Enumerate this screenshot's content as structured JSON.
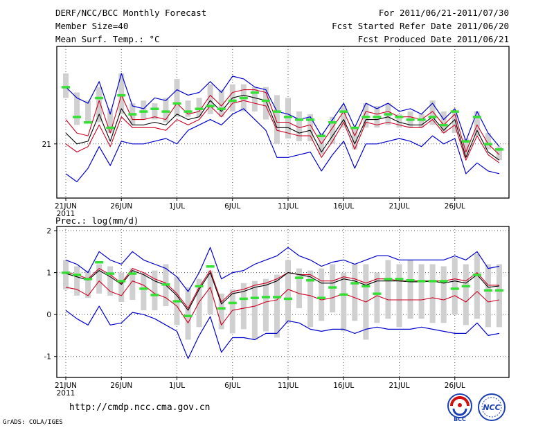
{
  "header": {
    "title": "DERF/NCC/BCC Monthly Forecast",
    "member_size": "Member Size=40",
    "variable": "Mean Surf. Temp.: °C",
    "period": "For 2011/06/21-2011/07/30",
    "fcst_started": "Fcst Started Refer Date 2011/06/20",
    "fcst_produced": "Fcst Produced Date 2011/06/21"
  },
  "precip_label": "Prec.: log(mm/d)",
  "footer": {
    "url": "http://cmdp.ncc.cma.gov.cn",
    "grads": "GrADS: COLA/IGES",
    "logo_bcc": "BCC",
    "logo_ncc": "NCC"
  },
  "colors": {
    "envelope": "#0000cc",
    "spread": "#cc0022",
    "mean": "#000000",
    "median": "#33e033",
    "box": "#d0d0d0"
  },
  "chart_data": [
    {
      "type": "line",
      "title": "Mean Surf. Temp.: °C",
      "ylabel": "°C",
      "ylim": [
        20.0,
        22.8
      ],
      "yticks": [
        21
      ],
      "xticks": [
        {
          "day": 0,
          "label": "21JUN",
          "sub": "2011"
        },
        {
          "day": 5,
          "label": "26JUN"
        },
        {
          "day": 10,
          "label": "1JUL"
        },
        {
          "day": 15,
          "label": "6JUL"
        },
        {
          "day": 20,
          "label": "11JUL"
        },
        {
          "day": 25,
          "label": "16JUL"
        },
        {
          "day": 30,
          "label": "21JUL"
        },
        {
          "day": 35,
          "label": "26JUL"
        }
      ],
      "x": [
        0,
        1,
        2,
        3,
        4,
        5,
        6,
        7,
        8,
        9,
        10,
        11,
        12,
        13,
        14,
        15,
        16,
        17,
        18,
        19,
        20,
        21,
        22,
        23,
        24,
        25,
        26,
        27,
        28,
        29,
        30,
        31,
        32,
        33,
        34,
        35,
        36,
        37,
        38,
        39
      ],
      "series": [
        {
          "name": "max",
          "values": [
            22.05,
            21.85,
            21.75,
            22.15,
            21.55,
            22.3,
            21.7,
            21.65,
            21.85,
            21.8,
            22.0,
            21.9,
            21.95,
            22.15,
            21.95,
            22.25,
            22.2,
            22.05,
            22.0,
            21.6,
            21.55,
            21.45,
            21.5,
            21.15,
            21.45,
            21.75,
            21.3,
            21.75,
            21.65,
            21.75,
            21.6,
            21.65,
            21.55,
            21.75,
            21.45,
            21.65,
            21.05,
            21.6,
            21.2,
            20.95
          ]
        },
        {
          "name": "upper",
          "values": [
            21.45,
            21.2,
            21.15,
            21.8,
            21.2,
            21.9,
            21.45,
            21.45,
            21.5,
            21.45,
            21.75,
            21.55,
            21.6,
            21.9,
            21.7,
            21.95,
            22.0,
            22.0,
            21.95,
            21.4,
            21.4,
            21.3,
            21.35,
            21.0,
            21.3,
            21.6,
            21.15,
            21.6,
            21.55,
            21.6,
            21.5,
            21.5,
            21.45,
            21.6,
            21.35,
            21.55,
            20.85,
            21.35,
            21.0,
            20.8
          ]
        },
        {
          "name": "mean",
          "values": [
            21.2,
            21.0,
            21.05,
            21.55,
            21.05,
            21.65,
            21.35,
            21.35,
            21.4,
            21.35,
            21.55,
            21.45,
            21.5,
            21.8,
            21.6,
            21.85,
            21.9,
            21.85,
            21.8,
            21.3,
            21.3,
            21.2,
            21.25,
            20.85,
            21.15,
            21.45,
            21.0,
            21.45,
            21.45,
            21.5,
            21.4,
            21.35,
            21.35,
            21.5,
            21.25,
            21.45,
            20.75,
            21.25,
            20.85,
            20.7
          ]
        },
        {
          "name": "lower",
          "values": [
            21.0,
            20.85,
            20.95,
            21.35,
            20.95,
            21.5,
            21.3,
            21.3,
            21.3,
            21.25,
            21.45,
            21.35,
            21.45,
            21.7,
            21.5,
            21.75,
            21.8,
            21.75,
            21.7,
            21.25,
            21.2,
            21.15,
            21.15,
            20.75,
            21.05,
            21.4,
            20.9,
            21.4,
            21.35,
            21.4,
            21.35,
            21.3,
            21.3,
            21.45,
            21.2,
            21.35,
            20.7,
            21.15,
            20.8,
            20.65
          ]
        },
        {
          "name": "min",
          "values": [
            20.45,
            20.3,
            20.55,
            20.95,
            20.6,
            21.05,
            21.0,
            21.0,
            21.05,
            21.1,
            21.0,
            21.25,
            21.35,
            21.45,
            21.35,
            21.55,
            21.65,
            21.45,
            21.25,
            20.75,
            20.75,
            20.8,
            20.85,
            20.5,
            20.8,
            21.05,
            20.55,
            21.0,
            21.0,
            21.05,
            21.1,
            21.05,
            20.95,
            21.15,
            21.0,
            21.1,
            20.45,
            20.65,
            20.5,
            20.45
          ]
        },
        {
          "name": "median",
          "values": [
            22.05,
            21.5,
            21.4,
            21.85,
            21.3,
            21.9,
            21.55,
            21.6,
            21.65,
            21.6,
            21.75,
            21.6,
            21.65,
            21.7,
            21.65,
            21.8,
            21.85,
            21.95,
            21.8,
            21.6,
            21.5,
            21.45,
            21.45,
            21.15,
            21.4,
            21.6,
            21.3,
            21.5,
            21.5,
            21.55,
            21.5,
            21.45,
            21.45,
            21.5,
            21.35,
            21.6,
            21.05,
            21.5,
            21.0,
            20.9
          ]
        },
        {
          "name": "box_high",
          "values": [
            22.3,
            21.95,
            21.8,
            22.05,
            21.65,
            22.3,
            21.75,
            21.8,
            21.75,
            21.85,
            22.2,
            21.8,
            21.85,
            22.1,
            22.0,
            22.1,
            22.1,
            22.05,
            22.05,
            21.9,
            21.85,
            21.6,
            21.55,
            21.2,
            21.5,
            21.7,
            21.3,
            21.75,
            21.7,
            21.75,
            21.55,
            21.6,
            21.55,
            21.8,
            21.6,
            21.6,
            21.1,
            21.6,
            21.2,
            20.95
          ]
        },
        {
          "name": "box_low",
          "values": [
            21.85,
            21.35,
            21.4,
            21.4,
            21.2,
            21.55,
            21.35,
            21.45,
            21.45,
            21.4,
            21.5,
            21.5,
            21.5,
            21.55,
            21.5,
            21.6,
            21.6,
            21.6,
            21.45,
            21.0,
            21.1,
            21.05,
            21.05,
            20.8,
            21.0,
            21.3,
            20.9,
            21.3,
            21.3,
            21.35,
            21.3,
            21.3,
            21.3,
            21.35,
            21.2,
            21.2,
            20.75,
            21.15,
            20.9,
            20.7
          ]
        }
      ]
    },
    {
      "type": "line",
      "title": "Prec.: log(mm/d)",
      "ylabel": "log(mm/d)",
      "ylim": [
        -1.5,
        2.1
      ],
      "yticks": [
        -1,
        0,
        1,
        2
      ],
      "xticks": [
        {
          "day": 0,
          "label": "21JUN",
          "sub": "2011"
        },
        {
          "day": 5,
          "label": "26JUN"
        },
        {
          "day": 10,
          "label": "1JUL"
        },
        {
          "day": 15,
          "label": "6JUL"
        },
        {
          "day": 20,
          "label": "11JUL"
        },
        {
          "day": 25,
          "label": "16JUL"
        },
        {
          "day": 30,
          "label": "21JUL"
        },
        {
          "day": 35,
          "label": "26JUL"
        }
      ],
      "x": [
        0,
        1,
        2,
        3,
        4,
        5,
        6,
        7,
        8,
        9,
        10,
        11,
        12,
        13,
        14,
        15,
        16,
        17,
        18,
        19,
        20,
        21,
        22,
        23,
        24,
        25,
        26,
        27,
        28,
        29,
        30,
        31,
        32,
        33,
        34,
        35,
        36,
        37,
        38,
        39
      ],
      "series": [
        {
          "name": "max",
          "values": [
            1.3,
            1.2,
            1.0,
            1.5,
            1.3,
            1.2,
            1.5,
            1.3,
            1.2,
            1.1,
            0.9,
            0.55,
            1.0,
            1.6,
            0.85,
            1.0,
            1.05,
            1.2,
            1.3,
            1.4,
            1.6,
            1.4,
            1.3,
            1.15,
            1.25,
            1.3,
            1.2,
            1.3,
            1.4,
            1.4,
            1.3,
            1.3,
            1.3,
            1.3,
            1.3,
            1.4,
            1.3,
            1.5,
            1.1,
            1.15
          ]
        },
        {
          "name": "upper",
          "values": [
            1.0,
            0.95,
            0.85,
            1.1,
            0.95,
            0.75,
            1.1,
            1.0,
            0.85,
            0.75,
            0.5,
            0.15,
            0.65,
            1.05,
            0.3,
            0.55,
            0.6,
            0.7,
            0.75,
            0.85,
            1.0,
            0.95,
            0.95,
            0.8,
            0.8,
            0.9,
            0.85,
            0.75,
            0.85,
            0.85,
            0.8,
            0.8,
            0.8,
            0.8,
            0.8,
            0.85,
            0.8,
            1.0,
            0.7,
            0.7
          ]
        },
        {
          "name": "mean",
          "values": [
            0.98,
            0.9,
            0.82,
            1.05,
            0.9,
            0.72,
            1.05,
            0.95,
            0.8,
            0.7,
            0.45,
            0.1,
            0.6,
            1.0,
            0.25,
            0.5,
            0.55,
            0.65,
            0.7,
            0.8,
            1.0,
            0.95,
            0.9,
            0.75,
            0.75,
            0.85,
            0.8,
            0.7,
            0.8,
            0.8,
            0.8,
            0.78,
            0.78,
            0.8,
            0.75,
            0.8,
            0.75,
            0.95,
            0.65,
            0.68
          ]
        },
        {
          "name": "lower",
          "values": [
            0.65,
            0.6,
            0.45,
            0.8,
            0.55,
            0.45,
            0.8,
            0.7,
            0.5,
            0.4,
            0.2,
            -0.2,
            0.3,
            0.65,
            -0.25,
            0.1,
            0.15,
            0.2,
            0.3,
            0.35,
            0.6,
            0.5,
            0.45,
            0.35,
            0.4,
            0.5,
            0.4,
            0.3,
            0.45,
            0.35,
            0.35,
            0.35,
            0.35,
            0.4,
            0.35,
            0.45,
            0.3,
            0.55,
            0.3,
            0.35
          ]
        },
        {
          "name": "min",
          "values": [
            0.1,
            -0.1,
            -0.25,
            0.2,
            -0.25,
            -0.2,
            0.05,
            0.0,
            -0.1,
            -0.25,
            -0.4,
            -1.05,
            -0.5,
            -0.05,
            -0.9,
            -0.55,
            -0.55,
            -0.6,
            -0.45,
            -0.45,
            -0.15,
            -0.2,
            -0.35,
            -0.4,
            -0.35,
            -0.35,
            -0.45,
            -0.35,
            -0.3,
            -0.35,
            -0.35,
            -0.35,
            -0.3,
            -0.35,
            -0.4,
            -0.45,
            -0.45,
            -0.2,
            -0.5,
            -0.45
          ]
        },
        {
          "name": "median",
          "values": [
            1.0,
            0.95,
            0.85,
            1.25,
            0.98,
            0.8,
            0.98,
            0.62,
            0.47,
            0.72,
            0.32,
            -0.03,
            0.68,
            1.15,
            0.15,
            0.28,
            0.38,
            0.4,
            0.42,
            0.42,
            0.38,
            0.88,
            0.82,
            0.4,
            0.65,
            0.48,
            0.75,
            0.68,
            0.5,
            0.85,
            0.85,
            0.82,
            0.8,
            0.8,
            0.8,
            0.62,
            0.68,
            0.95,
            0.58,
            0.58
          ]
        },
        {
          "name": "box_high",
          "values": [
            1.3,
            1.15,
            1.05,
            1.2,
            1.15,
            1.0,
            1.1,
            1.0,
            1.05,
            1.2,
            0.9,
            0.65,
            0.85,
            1.05,
            0.5,
            0.6,
            0.75,
            0.8,
            0.85,
            0.95,
            1.3,
            1.1,
            1.05,
            1.1,
            1.2,
            1.0,
            1.2,
            1.2,
            1.0,
            1.3,
            1.2,
            1.3,
            1.2,
            1.2,
            1.15,
            1.35,
            1.2,
            1.45,
            1.2,
            1.2
          ]
        },
        {
          "name": "box_low",
          "values": [
            0.6,
            0.45,
            0.4,
            0.5,
            0.45,
            0.3,
            0.35,
            0.1,
            0.1,
            0.2,
            -0.25,
            -0.6,
            -0.3,
            0.0,
            -0.35,
            -0.45,
            -0.35,
            -0.6,
            -0.4,
            -0.55,
            -0.2,
            0.15,
            -0.3,
            -0.15,
            0.05,
            -0.4,
            -0.15,
            -0.6,
            -0.2,
            -0.1,
            -0.3,
            -0.1,
            -0.1,
            -0.2,
            -0.2,
            0.0,
            -0.25,
            -0.1,
            -0.3,
            -0.3
          ]
        }
      ]
    }
  ]
}
